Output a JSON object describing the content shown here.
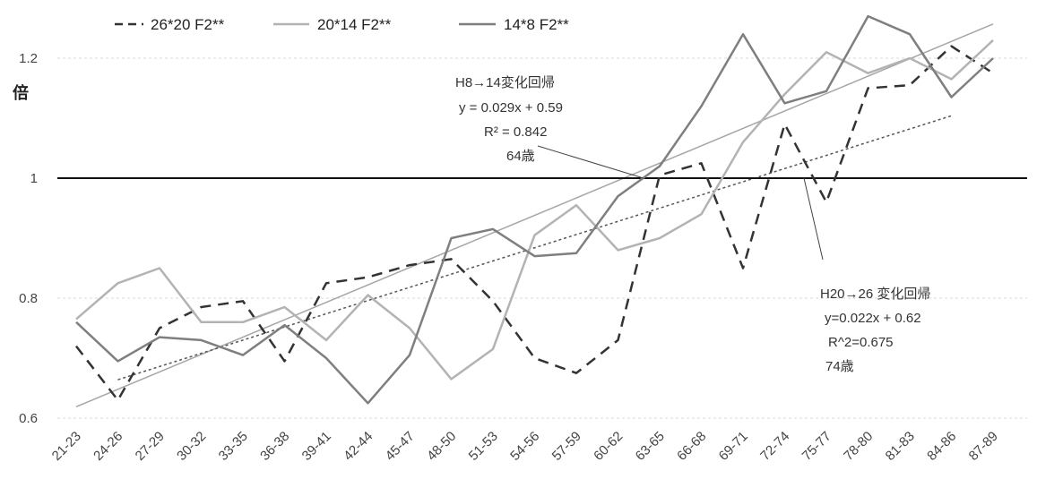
{
  "chart_data": {
    "type": "line",
    "title": "",
    "xlabel": "",
    "ylabel": "倍",
    "ylim": [
      0.6,
      1.25
    ],
    "yticks": [
      "0.6",
      "0.8",
      "1",
      "1.2"
    ],
    "ytick_values": [
      0.6,
      0.8,
      1.0,
      1.2
    ],
    "grid": true,
    "legend_position": "top-left",
    "categories": [
      "21-23",
      "24-26",
      "27-29",
      "30-32",
      "33-35",
      "36-38",
      "39-41",
      "42-44",
      "45-47",
      "48-50",
      "51-53",
      "54-56",
      "57-59",
      "60-62",
      "63-65",
      "66-68",
      "69-71",
      "72-74",
      "75-77",
      "78-80",
      "81-83",
      "84-86",
      "87-89"
    ],
    "reference_line": {
      "value": 1.0,
      "color": "#111111"
    },
    "series": [
      {
        "name": "26*20 F2**",
        "color": "#333333",
        "style": "dashed",
        "values": [
          0.72,
          0.63,
          0.75,
          0.785,
          0.795,
          0.695,
          0.825,
          0.835,
          0.855,
          0.865,
          0.795,
          0.7,
          0.675,
          0.73,
          1.005,
          1.025,
          0.85,
          1.09,
          0.96,
          1.15,
          1.155,
          1.22,
          1.175
        ]
      },
      {
        "name": "20*14 F2**",
        "color": "#b3b3b3",
        "style": "solid",
        "values": [
          0.765,
          0.825,
          0.85,
          0.76,
          0.76,
          0.785,
          0.73,
          0.805,
          0.75,
          0.665,
          0.715,
          0.905,
          0.955,
          0.88,
          0.9,
          0.94,
          1.06,
          1.14,
          1.21,
          1.175,
          1.2,
          1.165,
          1.23
        ]
      },
      {
        "name": "14*8 F2**",
        "color": "#7f7f7f",
        "style": "solid",
        "values": [
          0.76,
          0.695,
          0.735,
          0.73,
          0.705,
          0.755,
          0.7,
          0.625,
          0.705,
          0.9,
          0.915,
          0.87,
          0.875,
          0.97,
          1.02,
          1.12,
          1.24,
          1.125,
          1.145,
          1.27,
          1.24,
          1.135,
          1.2
        ]
      }
    ],
    "trendlines": [
      {
        "series": "14*8 F2**",
        "slope": 0.029,
        "intercept": 0.59,
        "color": "#a6a6a6",
        "style": "solid",
        "x_start": 1,
        "x_end": 23
      },
      {
        "series": "26*20 F2**",
        "slope": 0.022,
        "intercept": 0.62,
        "color": "#555555",
        "style": "dotted",
        "x_start": 2,
        "x_end": 22
      }
    ],
    "annotations": {
      "h8": {
        "title": "H8→14変化回帰",
        "equation": "y = 0.029x + 0.59",
        "r2": "R² = 0.842",
        "age": "64歳"
      },
      "h20": {
        "title": "H20→26 変化回帰",
        "equation": "y=0.022x + 0.62",
        "r2": "R^2=0.675",
        "age": "74歳"
      }
    }
  }
}
